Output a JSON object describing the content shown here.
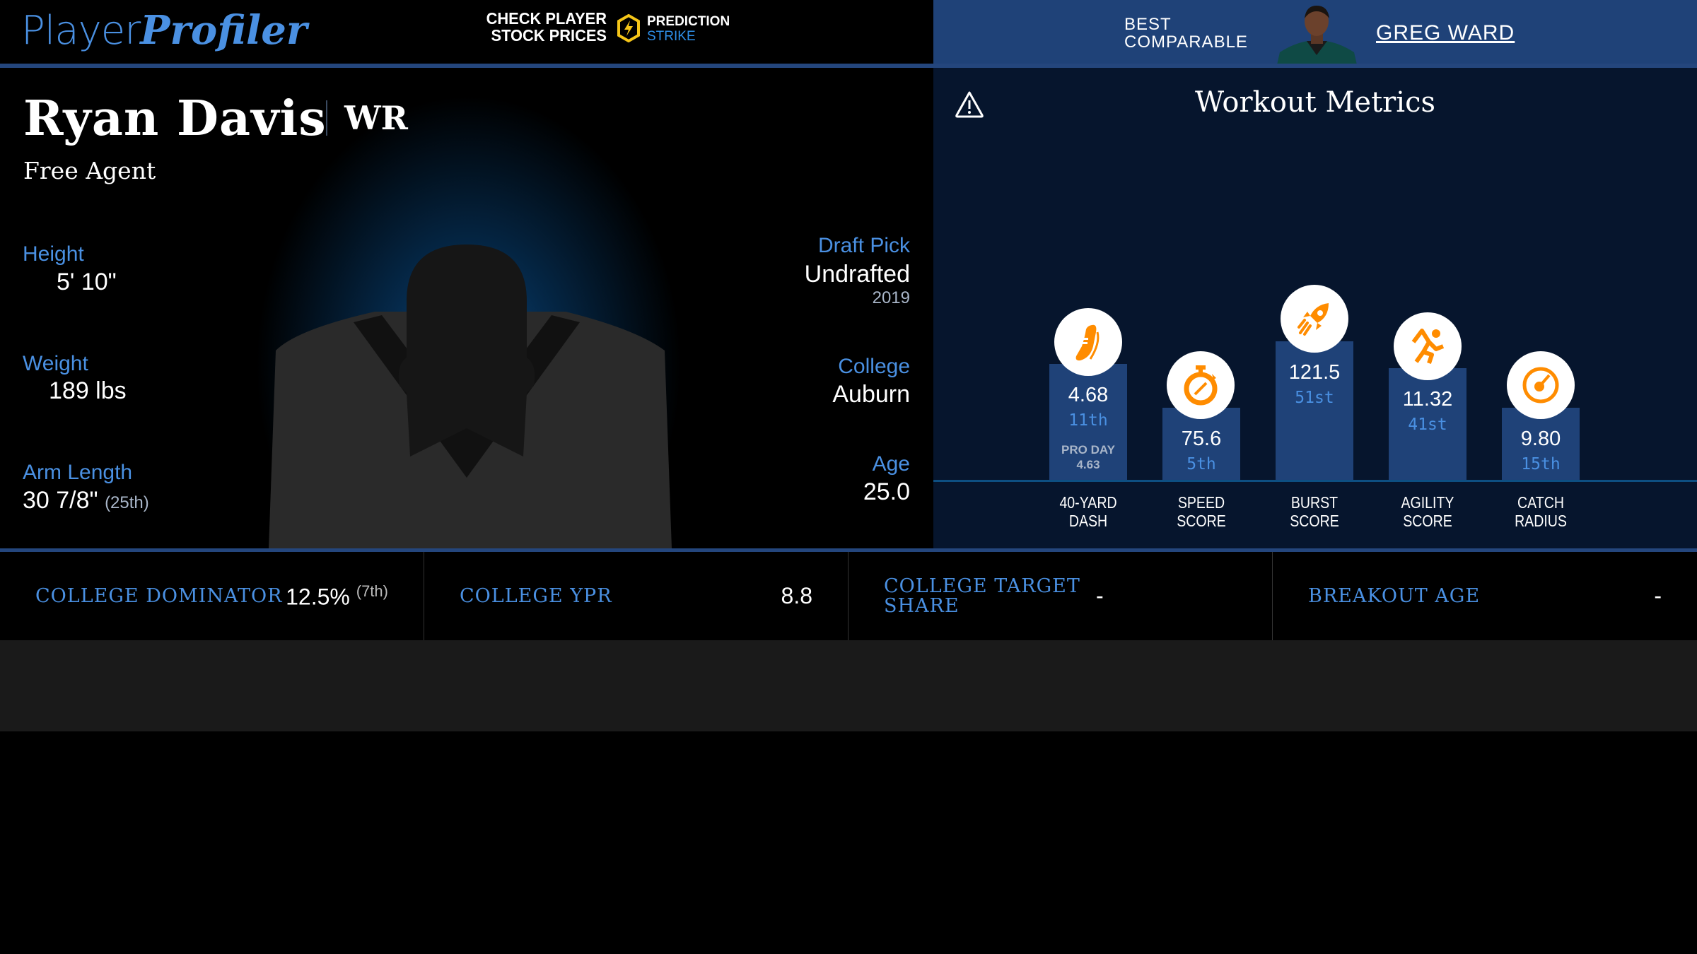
{
  "header": {
    "logo_part1": "Player",
    "logo_part2": "Profiler",
    "promo_line1": "CHECK PLAYER",
    "promo_line2": "STOCK PRICES",
    "partner_line1": "PREDICTION",
    "partner_line2": "STRIKE",
    "comparable_line1": "BEST",
    "comparable_line2": "COMPARABLE",
    "comparable_name": "GREG WARD"
  },
  "player": {
    "name": "Ryan Davis",
    "position": "WR",
    "team": "Free Agent",
    "height_label": "Height",
    "height": "5' 10\"",
    "weight_label": "Weight",
    "weight": "189 lbs",
    "arm_label": "Arm Length",
    "arm": "30 7/8\"",
    "arm_rank": "(25th)",
    "draft_label": "Draft Pick",
    "draft": "Undrafted",
    "draft_year": "2019",
    "college_label": "College",
    "college": "Auburn",
    "age_label": "Age",
    "age": "25.0"
  },
  "workout": {
    "title": "Workout Metrics",
    "metrics": [
      {
        "label1": "40-YARD",
        "label2": "DASH",
        "value": "4.68",
        "rank": "11th",
        "extra1": "PRO DAY",
        "extra2": "4.63",
        "icon": "shoe-icon"
      },
      {
        "label1": "SPEED",
        "label2": "SCORE",
        "value": "75.6",
        "rank": "5th",
        "icon": "stopwatch-icon"
      },
      {
        "label1": "BURST",
        "label2": "SCORE",
        "value": "121.5",
        "rank": "51st",
        "icon": "rocket-icon"
      },
      {
        "label1": "AGILITY",
        "label2": "SCORE",
        "value": "11.32",
        "rank": "41st",
        "icon": "runner-icon"
      },
      {
        "label1": "CATCH",
        "label2": "RADIUS",
        "value": "9.80",
        "rank": "15th",
        "icon": "target-icon"
      }
    ]
  },
  "stats": [
    {
      "label": "COLLEGE DOMINATOR",
      "value": "12.5%",
      "rank": "(7th)"
    },
    {
      "label": "COLLEGE YPR",
      "value": "8.8"
    },
    {
      "label": "COLLEGE TARGET SHARE",
      "value": "-"
    },
    {
      "label": "BREAKOUT AGE",
      "value": "-"
    }
  ],
  "colors": {
    "accent": "#4a90e2",
    "panel_blue": "#1f4278",
    "icon_orange": "#ff8c00",
    "strike_yellow": "#f5c518"
  }
}
